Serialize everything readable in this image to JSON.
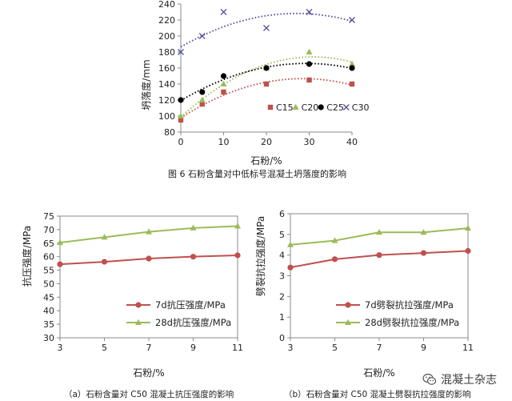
{
  "chart_data": [
    {
      "type": "scatter",
      "title": "",
      "caption": "图 6  石粉含量对中低标号混凝土坍落度的影响",
      "xlabel": "石粉/%",
      "ylabel": "坍落度/mm",
      "xlim": [
        0,
        40
      ],
      "ylim": [
        80,
        240
      ],
      "xticks": [
        0,
        10,
        20,
        30,
        40
      ],
      "yticks": [
        80,
        100,
        120,
        140,
        160,
        180,
        200,
        220,
        240
      ],
      "grid": false,
      "legend_position": "bottom-right",
      "trendline": "dotted quadratic",
      "x": [
        0,
        5,
        10,
        20,
        30,
        40
      ],
      "series": [
        {
          "name": "C15",
          "marker": "square",
          "color": "#c0504d",
          "trend_color": "#c0504d",
          "values": [
            95,
            115,
            130,
            140,
            145,
            140
          ]
        },
        {
          "name": "C20",
          "marker": "triangle",
          "color": "#9bbb59",
          "trend_color": "#9bbb59",
          "values": [
            100,
            120,
            140,
            160,
            180,
            165
          ]
        },
        {
          "name": "C25",
          "marker": "circle",
          "color": "#000000",
          "trend_color": "#000000",
          "values": [
            120,
            130,
            150,
            160,
            165,
            160
          ]
        },
        {
          "name": "C30",
          "marker": "cross",
          "color": "#4f4f9f",
          "trend_color": "#4f4f9f",
          "values": [
            180,
            200,
            230,
            210,
            230,
            220
          ]
        }
      ]
    },
    {
      "type": "line",
      "title": "",
      "caption": "（a）石粉含量对 C50 混凝土抗压强度的影响",
      "xlabel": "石粉/%",
      "ylabel": "抗压强度/MPa",
      "xlim": [
        3,
        11
      ],
      "ylim": [
        30,
        75
      ],
      "xticks": [
        3,
        5,
        7,
        9,
        11
      ],
      "yticks": [
        30,
        35,
        40,
        45,
        50,
        55,
        60,
        65,
        70,
        75
      ],
      "grid": false,
      "legend_position": "bottom-right",
      "x": [
        3,
        5,
        7,
        9,
        11
      ],
      "series": [
        {
          "name": "7d抗压强度/MPa",
          "marker": "circle",
          "color": "#c0504d",
          "values": [
            57.2,
            58.1,
            59.3,
            60.0,
            60.5
          ]
        },
        {
          "name": "28d抗压强度/MPa",
          "marker": "triangle",
          "color": "#9bbb59",
          "values": [
            65.2,
            67.2,
            69.2,
            70.6,
            71.3
          ]
        }
      ]
    },
    {
      "type": "line",
      "title": "",
      "caption": "（b）石粉含量对 C50 混凝土劈裂抗拉强度的影响",
      "xlabel": "石粉/%",
      "ylabel": "劈裂抗拉强度/MPa",
      "xlim": [
        3,
        11
      ],
      "ylim": [
        0,
        6
      ],
      "xticks": [
        3,
        5,
        7,
        9,
        11
      ],
      "yticks": [
        0,
        1,
        2,
        3,
        4,
        5,
        6
      ],
      "grid": false,
      "legend_position": "bottom-right",
      "x": [
        3,
        5,
        7,
        9,
        11
      ],
      "series": [
        {
          "name": "7d劈裂抗拉强度/MPa",
          "marker": "circle",
          "color": "#c0504d",
          "values": [
            3.4,
            3.8,
            4.0,
            4.1,
            4.2
          ]
        },
        {
          "name": "28d劈裂抗拉强度/MPa",
          "marker": "triangle",
          "color": "#9bbb59",
          "values": [
            4.5,
            4.7,
            5.1,
            5.1,
            5.3
          ]
        }
      ]
    }
  ],
  "watermark": {
    "text": "混凝土杂志",
    "icon": "wechat-icon"
  }
}
